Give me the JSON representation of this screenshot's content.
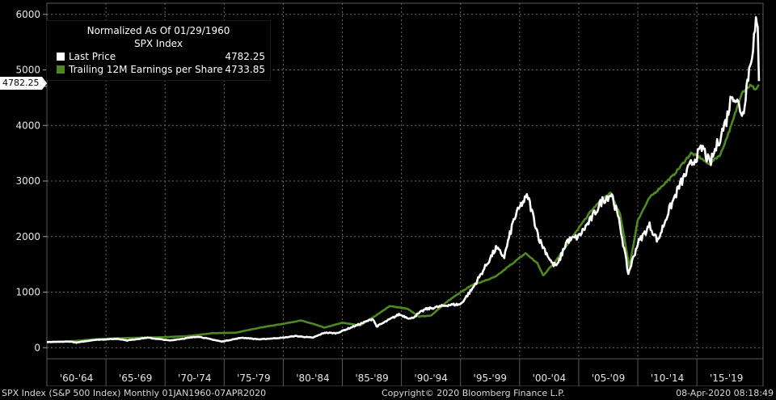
{
  "chart_data": {
    "type": "line",
    "legend": {
      "title_line1": "Normalized As Of 01/29/1960",
      "title_line2": "SPX Index",
      "placement": "top-left"
    },
    "ylim": [
      -200,
      6200
    ],
    "y_ticks": [
      0,
      1000,
      2000,
      3000,
      4000,
      5000,
      6000
    ],
    "y_tick_labels": [
      "0",
      "1000",
      "2000",
      "3000",
      "4000",
      "5000",
      "6000"
    ],
    "xlim": [
      1960.0,
      2020.6
    ],
    "x_bands": [
      {
        "label": "'60-'64",
        "start": 1960,
        "end": 1965
      },
      {
        "label": "'65-'69",
        "start": 1965,
        "end": 1970
      },
      {
        "label": "'70-'74",
        "start": 1970,
        "end": 1975
      },
      {
        "label": "'75-'79",
        "start": 1975,
        "end": 1980
      },
      {
        "label": "'80-'84",
        "start": 1980,
        "end": 1985
      },
      {
        "label": "'85-'89",
        "start": 1985,
        "end": 1990
      },
      {
        "label": "'90-'94",
        "start": 1990,
        "end": 1995
      },
      {
        "label": "'95-'99",
        "start": 1995,
        "end": 2000
      },
      {
        "label": "'00-'04",
        "start": 2000,
        "end": 2005
      },
      {
        "label": "'05-'09",
        "start": 2005,
        "end": 2010
      },
      {
        "label": "'10-'14",
        "start": 2010,
        "end": 2015
      },
      {
        "label": "'15-'19",
        "start": 2015,
        "end": 2020
      }
    ],
    "grid": true,
    "last_value_label": "4782.25",
    "series": [
      {
        "name": "Last Price",
        "last_value": "4782.25",
        "color": "#ffffff",
        "points": [
          [
            1960.0,
            100
          ],
          [
            1962.0,
            110
          ],
          [
            1962.5,
            90
          ],
          [
            1964.0,
            140
          ],
          [
            1966.0,
            160
          ],
          [
            1966.8,
            130
          ],
          [
            1968.5,
            180
          ],
          [
            1970.4,
            130
          ],
          [
            1972.8,
            200
          ],
          [
            1974.8,
            110
          ],
          [
            1976.5,
            180
          ],
          [
            1978.0,
            150
          ],
          [
            1980.0,
            180
          ],
          [
            1981.0,
            210
          ],
          [
            1982.5,
            180
          ],
          [
            1983.5,
            270
          ],
          [
            1984.5,
            260
          ],
          [
            1987.6,
            520
          ],
          [
            1987.9,
            380
          ],
          [
            1989.8,
            600
          ],
          [
            1990.8,
            520
          ],
          [
            1992.0,
            690
          ],
          [
            1994.0,
            770
          ],
          [
            1995.0,
            780
          ],
          [
            1996.0,
            1060
          ],
          [
            1997.0,
            1420
          ],
          [
            1998.0,
            1790
          ],
          [
            1998.7,
            1640
          ],
          [
            1999.5,
            2300
          ],
          [
            2000.2,
            2600
          ],
          [
            2000.7,
            2720
          ],
          [
            2001.7,
            1930
          ],
          [
            2002.8,
            1500
          ],
          [
            2003.2,
            1480
          ],
          [
            2004.0,
            1920
          ],
          [
            2005.0,
            2000
          ],
          [
            2006.0,
            2300
          ],
          [
            2007.0,
            2650
          ],
          [
            2007.8,
            2770
          ],
          [
            2008.5,
            2200
          ],
          [
            2009.2,
            1330
          ],
          [
            2010.0,
            1880
          ],
          [
            2011.0,
            2200
          ],
          [
            2011.7,
            1920
          ],
          [
            2012.5,
            2400
          ],
          [
            2013.5,
            2900
          ],
          [
            2014.5,
            3300
          ],
          [
            2015.5,
            3600
          ],
          [
            2016.1,
            3300
          ],
          [
            2016.8,
            3700
          ],
          [
            2017.5,
            4100
          ],
          [
            2018.0,
            4600
          ],
          [
            2018.9,
            4200
          ],
          [
            2019.2,
            4700
          ],
          [
            2019.5,
            5100
          ],
          [
            2020.0,
            5800
          ],
          [
            2020.15,
            5700
          ],
          [
            2020.25,
            4800
          ]
        ]
      },
      {
        "name": "Trailing 12M Earnings per Share",
        "last_value": "4733.85",
        "color": "#4e8a21",
        "points": [
          [
            1960.0,
            100
          ],
          [
            1962.0,
            115
          ],
          [
            1964.0,
            150
          ],
          [
            1966.0,
            170
          ],
          [
            1968.0,
            180
          ],
          [
            1970.0,
            190
          ],
          [
            1972.0,
            210
          ],
          [
            1974.0,
            260
          ],
          [
            1976.0,
            270
          ],
          [
            1978.0,
            360
          ],
          [
            1980.0,
            430
          ],
          [
            1981.5,
            490
          ],
          [
            1982.5,
            430
          ],
          [
            1983.5,
            360
          ],
          [
            1985.0,
            450
          ],
          [
            1986.5,
            400
          ],
          [
            1988.0,
            600
          ],
          [
            1989.0,
            750
          ],
          [
            1990.5,
            700
          ],
          [
            1991.5,
            560
          ],
          [
            1992.5,
            580
          ],
          [
            1994.0,
            850
          ],
          [
            1995.0,
            1000
          ],
          [
            1996.0,
            1130
          ],
          [
            1997.0,
            1200
          ],
          [
            1998.0,
            1280
          ],
          [
            1999.0,
            1450
          ],
          [
            2000.5,
            1700
          ],
          [
            2001.5,
            1520
          ],
          [
            2002.0,
            1300
          ],
          [
            2003.0,
            1550
          ],
          [
            2004.0,
            1850
          ],
          [
            2005.0,
            2150
          ],
          [
            2006.0,
            2450
          ],
          [
            2007.0,
            2680
          ],
          [
            2007.7,
            2780
          ],
          [
            2008.5,
            2400
          ],
          [
            2009.3,
            1450
          ],
          [
            2010.0,
            2300
          ],
          [
            2011.0,
            2700
          ],
          [
            2012.0,
            2900
          ],
          [
            2013.0,
            3100
          ],
          [
            2014.5,
            3500
          ],
          [
            2015.3,
            3420
          ],
          [
            2016.0,
            3300
          ],
          [
            2017.0,
            3480
          ],
          [
            2018.0,
            4050
          ],
          [
            2018.8,
            4600
          ],
          [
            2019.5,
            4720
          ],
          [
            2020.0,
            4650
          ],
          [
            2020.25,
            4734
          ]
        ]
      }
    ]
  },
  "footer": {
    "left": "SPX Index (S&P 500 Index)  Monthly 01JAN1960-07APR2020",
    "center": "Copyright© 2020 Bloomberg Finance L.P.",
    "right": "08-Apr-2020 08:18:49"
  }
}
